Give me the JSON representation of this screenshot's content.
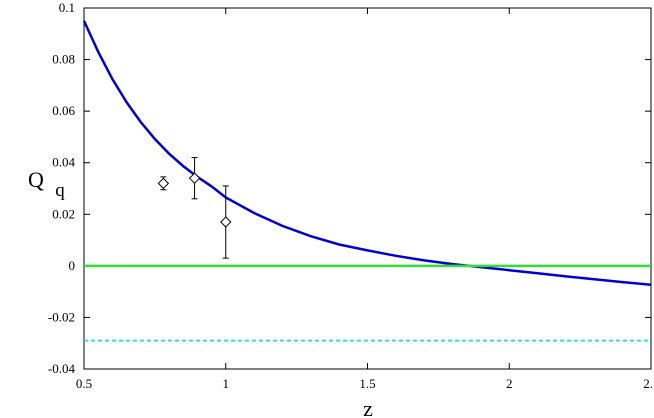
{
  "chart_data": {
    "type": "line",
    "xlabel": "z",
    "ylabel_main": "Q",
    "ylabel_sub": "q",
    "xlim": [
      0.5,
      2.5
    ],
    "ylim": [
      -0.04,
      0.1
    ],
    "x_ticks": [
      {
        "value": 0.5,
        "label": "0.5"
      },
      {
        "value": 1.0,
        "label": "1"
      },
      {
        "value": 1.5,
        "label": "1.5"
      },
      {
        "value": 2.0,
        "label": "2"
      },
      {
        "value": 2.5,
        "label": "2."
      }
    ],
    "y_ticks": [
      {
        "value": -0.04,
        "label": "-0.04"
      },
      {
        "value": -0.02,
        "label": "-0.02"
      },
      {
        "value": 0.0,
        "label": "0"
      },
      {
        "value": 0.02,
        "label": "0.02"
      },
      {
        "value": 0.04,
        "label": "0.04"
      },
      {
        "value": 0.06,
        "label": "0.06"
      },
      {
        "value": 0.08,
        "label": "0.08"
      },
      {
        "value": 0.1,
        "label": "0.1"
      }
    ],
    "grid": false,
    "series": [
      {
        "kind": "curve",
        "color": "#0000cc",
        "x": [
          0.5,
          0.55,
          0.6,
          0.65,
          0.7,
          0.75,
          0.8,
          0.85,
          0.9,
          0.95,
          1.0,
          1.1,
          1.2,
          1.3,
          1.4,
          1.5,
          1.6,
          1.7,
          1.8,
          1.86,
          1.9,
          2.0,
          2.1,
          2.2,
          2.3,
          2.4,
          2.5
        ],
        "y": [
          0.095,
          0.083,
          0.0725,
          0.0635,
          0.0558,
          0.0492,
          0.0435,
          0.0387,
          0.0345,
          0.0308,
          0.0265,
          0.0205,
          0.0155,
          0.0115,
          0.0083,
          0.006,
          0.0039,
          0.0021,
          0.0007,
          0.0,
          -0.0005,
          -0.0017,
          -0.0029,
          -0.0041,
          -0.0052,
          -0.0063,
          -0.0073
        ]
      },
      {
        "kind": "hline",
        "color": "#33dd33",
        "y": 0.0
      },
      {
        "kind": "hline-dashed",
        "color": "#33dddd",
        "y": -0.029
      },
      {
        "kind": "points",
        "marker": "diamond",
        "color": "#000000",
        "points": [
          {
            "x": 0.78,
            "y": 0.032,
            "err": 0.0025
          },
          {
            "x": 0.89,
            "y": 0.034,
            "err": 0.008
          },
          {
            "x": 1.0,
            "y": 0.017,
            "err": 0.014
          }
        ]
      }
    ]
  }
}
